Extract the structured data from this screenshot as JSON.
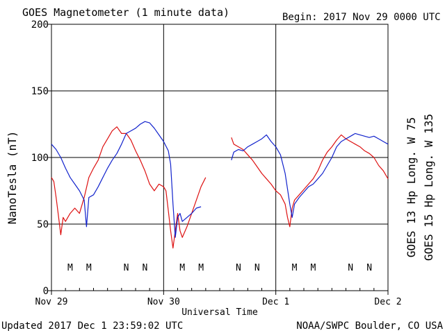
{
  "header": {
    "title": "GOES Magnetometer (1 minute data)",
    "begin": "Begin:  2017 Nov 29 0000 UTC"
  },
  "footer": {
    "updated": "Updated 2017 Dec  1 23:59:02 UTC",
    "credit": "NOAA/SWPC Boulder, CO USA"
  },
  "colors": {
    "goes13": "#dd1111",
    "goes15": "#1122cc",
    "frame": "#000000"
  },
  "chart_data": {
    "type": "line",
    "title": "GOES Magnetometer (1 minute data)",
    "xlabel": "Universal Time",
    "ylabel": "NanoTesla (nT)",
    "xlim": [
      0,
      72
    ],
    "ylim": [
      0,
      200
    ],
    "x_unit": "hours since 2017 Nov 29 0000 UTC",
    "y_ticks": [
      "0",
      "50",
      "100",
      "150",
      "200"
    ],
    "x_ticks": [
      {
        "x": 0,
        "label": "Nov 29"
      },
      {
        "x": 24,
        "label": "Nov 30"
      },
      {
        "x": 48,
        "label": "Dec 1"
      },
      {
        "x": 72,
        "label": "Dec 2"
      }
    ],
    "grid": true,
    "series": [
      {
        "name": "GOES 13 Hp  Long. W 75",
        "color_key": "goes13",
        "segments": [
          [
            [
              0,
              85
            ],
            [
              0.5,
              82
            ],
            [
              1,
              70
            ],
            [
              1.5,
              56
            ],
            [
              2,
              42
            ],
            [
              2.5,
              55
            ],
            [
              3,
              52
            ],
            [
              3.5,
              55
            ],
            [
              4,
              58
            ],
            [
              5,
              62
            ],
            [
              6,
              58
            ],
            [
              7,
              70
            ],
            [
              8,
              85
            ],
            [
              9,
              92
            ],
            [
              10,
              98
            ],
            [
              11,
              108
            ],
            [
              12,
              114
            ],
            [
              13,
              120
            ],
            [
              14,
              123
            ],
            [
              15,
              118
            ],
            [
              16,
              118
            ],
            [
              17,
              113
            ],
            [
              18,
              105
            ],
            [
              19,
              98
            ],
            [
              20,
              90
            ],
            [
              21,
              80
            ],
            [
              22,
              75
            ],
            [
              23,
              80
            ],
            [
              24,
              78
            ],
            [
              24.5,
              75
            ],
            [
              25,
              60
            ],
            [
              25.5,
              45
            ],
            [
              26,
              32
            ],
            [
              26.5,
              45
            ],
            [
              27,
              58
            ],
            [
              27.5,
              45
            ],
            [
              28,
              40
            ],
            [
              29,
              48
            ],
            [
              30,
              58
            ],
            [
              31,
              68
            ],
            [
              32,
              78
            ],
            [
              33,
              85
            ]
          ],
          [
            [
              38.5,
              115
            ],
            [
              39,
              110
            ],
            [
              40,
              108
            ],
            [
              41,
              106
            ],
            [
              42,
              102
            ],
            [
              43,
              98
            ],
            [
              44,
              93
            ],
            [
              45,
              88
            ],
            [
              46,
              84
            ],
            [
              47,
              80
            ],
            [
              48,
              75
            ],
            [
              49,
              72
            ],
            [
              50,
              65
            ],
            [
              50.5,
              55
            ],
            [
              51,
              48
            ],
            [
              51.5,
              62
            ],
            [
              52,
              68
            ],
            [
              53,
              72
            ],
            [
              54,
              76
            ],
            [
              55,
              80
            ],
            [
              56,
              84
            ],
            [
              57,
              90
            ],
            [
              58,
              98
            ],
            [
              59,
              104
            ],
            [
              60,
              108
            ],
            [
              61,
              113
            ],
            [
              62,
              117
            ],
            [
              63,
              114
            ],
            [
              64,
              112
            ],
            [
              65,
              110
            ],
            [
              66,
              108
            ],
            [
              67,
              105
            ],
            [
              68,
              103
            ],
            [
              69,
              100
            ],
            [
              70,
              94
            ],
            [
              71,
              90
            ],
            [
              72,
              84
            ]
          ]
        ]
      },
      {
        "name": "GOES 15 Hp  Long. W 135",
        "color_key": "goes15",
        "segments": [
          [
            [
              0,
              110
            ],
            [
              1,
              106
            ],
            [
              2,
              100
            ],
            [
              3,
              92
            ],
            [
              4,
              85
            ],
            [
              5,
              80
            ],
            [
              6,
              75
            ],
            [
              7,
              68
            ],
            [
              7.5,
              48
            ],
            [
              8,
              70
            ],
            [
              9,
              72
            ],
            [
              10,
              78
            ],
            [
              11,
              85
            ],
            [
              12,
              92
            ],
            [
              13,
              98
            ],
            [
              14,
              103
            ],
            [
              15,
              110
            ],
            [
              16,
              118
            ],
            [
              17,
              120
            ],
            [
              18,
              122
            ],
            [
              19,
              125
            ],
            [
              20,
              127
            ],
            [
              21,
              126
            ],
            [
              22,
              122
            ],
            [
              23,
              117
            ],
            [
              24,
              112
            ],
            [
              25,
              105
            ],
            [
              25.5,
              95
            ],
            [
              26,
              65
            ],
            [
              26.5,
              40
            ],
            [
              27,
              55
            ],
            [
              27.5,
              58
            ],
            [
              28,
              52
            ],
            [
              29,
              55
            ],
            [
              30,
              58
            ],
            [
              31,
              62
            ],
            [
              32,
              63
            ]
          ],
          [
            [
              38.5,
              98
            ],
            [
              39,
              104
            ],
            [
              40,
              106
            ],
            [
              41,
              105
            ],
            [
              42,
              108
            ],
            [
              43,
              110
            ],
            [
              44,
              112
            ],
            [
              45,
              114
            ],
            [
              46,
              117
            ],
            [
              47,
              112
            ],
            [
              48,
              108
            ],
            [
              49,
              102
            ],
            [
              50,
              88
            ],
            [
              51,
              65
            ],
            [
              51.5,
              55
            ],
            [
              52,
              65
            ],
            [
              53,
              70
            ],
            [
              54,
              74
            ],
            [
              55,
              78
            ],
            [
              56,
              80
            ],
            [
              57,
              84
            ],
            [
              58,
              88
            ],
            [
              59,
              94
            ],
            [
              60,
              100
            ],
            [
              61,
              108
            ],
            [
              62,
              112
            ],
            [
              63,
              114
            ],
            [
              64,
              116
            ],
            [
              65,
              118
            ],
            [
              66,
              117
            ],
            [
              67,
              116
            ],
            [
              68,
              115
            ],
            [
              69,
              116
            ],
            [
              70,
              114
            ],
            [
              71,
              112
            ],
            [
              72,
              110
            ]
          ]
        ]
      }
    ],
    "markers": {
      "goes13": [
        {
          "x": 4,
          "label": "M"
        },
        {
          "x": 16,
          "label": "N"
        },
        {
          "x": 28,
          "label": "M"
        },
        {
          "x": 40,
          "label": "N"
        },
        {
          "x": 52,
          "label": "M"
        },
        {
          "x": 64,
          "label": "N"
        }
      ],
      "goes15": [
        {
          "x": 8,
          "label": "M"
        },
        {
          "x": 20,
          "label": "N"
        },
        {
          "x": 32,
          "label": "M"
        },
        {
          "x": 44,
          "label": "N"
        },
        {
          "x": 56,
          "label": "M"
        },
        {
          "x": 68,
          "label": "N"
        }
      ]
    }
  }
}
